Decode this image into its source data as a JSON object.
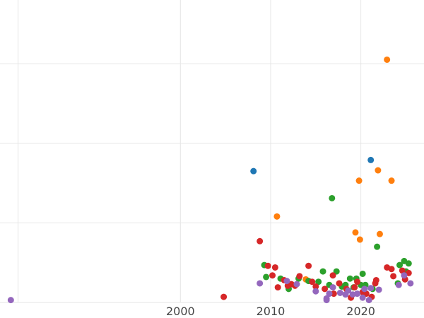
{
  "colors": {
    "background": "#ffffff",
    "grid": "#e6e6e6",
    "tick_text": "#444444"
  },
  "chart_data": {
    "type": "scatter",
    "title": "",
    "xlabel": "",
    "ylabel": "",
    "grid": true,
    "legend": "none",
    "xlim": [
      1980,
      2027
    ],
    "ylim": [
      0,
      3.8
    ],
    "x_ticks": [
      2000,
      2010,
      2020
    ],
    "x_tick_labels": [
      "2000",
      "2010",
      "2020"
    ],
    "y_gridlines": [
      0,
      1,
      2,
      3
    ],
    "series": [
      {
        "color": "#1f77b4",
        "points": [
          [
            2008.1,
            1.65
          ],
          [
            2021.1,
            1.79
          ]
        ]
      },
      {
        "color": "#ff7f0e",
        "points": [
          [
            2010.7,
            1.08
          ],
          [
            2013.9,
            0.29
          ],
          [
            2019.4,
            0.88
          ],
          [
            2019.8,
            1.53
          ],
          [
            2019.9,
            0.79
          ],
          [
            2021.9,
            1.66
          ],
          [
            2022.1,
            0.86
          ],
          [
            2022.9,
            3.05
          ],
          [
            2023.4,
            1.53
          ]
        ]
      },
      {
        "color": "#2ca02c",
        "points": [
          [
            2009.3,
            0.47
          ],
          [
            2009.5,
            0.32
          ],
          [
            2011.1,
            0.3
          ],
          [
            2012.0,
            0.17
          ],
          [
            2013.1,
            0.3
          ],
          [
            2014.2,
            0.27
          ],
          [
            2015.3,
            0.26
          ],
          [
            2015.8,
            0.39
          ],
          [
            2016.5,
            0.22
          ],
          [
            2016.8,
            1.31
          ],
          [
            2017.3,
            0.39
          ],
          [
            2017.9,
            0.2
          ],
          [
            2018.3,
            0.22
          ],
          [
            2018.8,
            0.3
          ],
          [
            2019.2,
            0.19
          ],
          [
            2019.5,
            0.3
          ],
          [
            2020.0,
            0.22
          ],
          [
            2020.2,
            0.36
          ],
          [
            2020.5,
            0.22
          ],
          [
            2021.3,
            0.17
          ],
          [
            2021.8,
            0.7
          ],
          [
            2024.3,
            0.47
          ],
          [
            2024.8,
            0.52
          ],
          [
            2025.0,
            0.39
          ],
          [
            2025.3,
            0.49
          ],
          [
            2024.1,
            0.24
          ]
        ]
      },
      {
        "color": "#d62728",
        "points": [
          [
            2004.8,
            0.07
          ],
          [
            2008.8,
            0.77
          ],
          [
            2009.7,
            0.46
          ],
          [
            2010.2,
            0.34
          ],
          [
            2010.5,
            0.44
          ],
          [
            2010.8,
            0.19
          ],
          [
            2011.5,
            0.28
          ],
          [
            2011.9,
            0.21
          ],
          [
            2012.3,
            0.23
          ],
          [
            2012.7,
            0.21
          ],
          [
            2013.2,
            0.33
          ],
          [
            2014.2,
            0.46
          ],
          [
            2014.6,
            0.26
          ],
          [
            2015.0,
            0.2
          ],
          [
            2016.0,
            0.17
          ],
          [
            2016.9,
            0.34
          ],
          [
            2017.0,
            0.11
          ],
          [
            2017.6,
            0.24
          ],
          [
            2018.4,
            0.17
          ],
          [
            2018.9,
            0.06
          ],
          [
            2019.3,
            0.19
          ],
          [
            2019.6,
            0.26
          ],
          [
            2020.2,
            0.13
          ],
          [
            2020.6,
            0.11
          ],
          [
            2021.2,
            0.07
          ],
          [
            2021.6,
            0.24
          ],
          [
            2021.7,
            0.28
          ],
          [
            2022.9,
            0.44
          ],
          [
            2023.4,
            0.42
          ],
          [
            2023.6,
            0.33
          ],
          [
            2024.6,
            0.4
          ],
          [
            2024.9,
            0.29
          ],
          [
            2025.3,
            0.37
          ]
        ]
      },
      {
        "color": "#9467bd",
        "points": [
          [
            1981.2,
            0.03
          ],
          [
            2008.8,
            0.24
          ],
          [
            2011.8,
            0.27
          ],
          [
            2012.9,
            0.23
          ],
          [
            2015.0,
            0.14
          ],
          [
            2016.2,
            0.03
          ],
          [
            2016.5,
            0.11
          ],
          [
            2016.9,
            0.19
          ],
          [
            2017.7,
            0.12
          ],
          [
            2018.3,
            0.1
          ],
          [
            2019.1,
            0.1
          ],
          [
            2019.6,
            0.11
          ],
          [
            2020.2,
            0.06
          ],
          [
            2020.9,
            0.03
          ],
          [
            2021.1,
            0.18
          ],
          [
            2022.0,
            0.16
          ],
          [
            2024.2,
            0.22
          ],
          [
            2024.8,
            0.34
          ],
          [
            2025.5,
            0.24
          ],
          [
            2016.2,
            0.05
          ],
          [
            2018.6,
            0.15
          ],
          [
            2020.4,
            0.17
          ]
        ]
      }
    ]
  }
}
